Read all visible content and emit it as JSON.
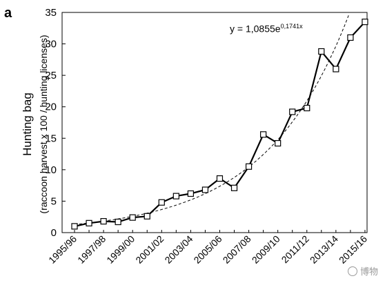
{
  "panel_label": "a",
  "chart_data": {
    "type": "line",
    "ylabel_line1": "Hunting bag",
    "ylabel_line2": "(raccoon harvest x 100 / hunting licenses)",
    "ylim": [
      0,
      35
    ],
    "yticks": [
      0,
      5,
      10,
      15,
      20,
      25,
      30,
      35
    ],
    "xticks": [
      "1995/96",
      "1997/98",
      "1999/00",
      "2001/02",
      "2003/04",
      "2005/06",
      "2007/08",
      "2009/10",
      "2011/12",
      "2013/14",
      "2015/16"
    ],
    "categories": [
      "1995/96",
      "1996/97",
      "1997/98",
      "1998/99",
      "1999/00",
      "2000/01",
      "2001/02",
      "2002/03",
      "2003/04",
      "2004/05",
      "2005/06",
      "2006/07",
      "2007/08",
      "2008/09",
      "2009/10",
      "2010/11",
      "2011/12",
      "2012/13",
      "2013/14",
      "2014/15",
      "2015/16"
    ],
    "series": [
      {
        "values": [
          1.0,
          1.5,
          1.8,
          1.7,
          2.4,
          2.6,
          4.8,
          5.8,
          6.2,
          6.8,
          8.6,
          7.1,
          10.5,
          15.6,
          14.2,
          19.2,
          19.8,
          28.8,
          26.0,
          31.0,
          33.5
        ]
      }
    ],
    "trend": {
      "equation_prefix": "y = 1,0855e",
      "equation_exponent": "0,1741x",
      "a": 1.0855,
      "b": 0.1741
    },
    "grid": false,
    "legend": "none"
  },
  "watermark": "博物"
}
